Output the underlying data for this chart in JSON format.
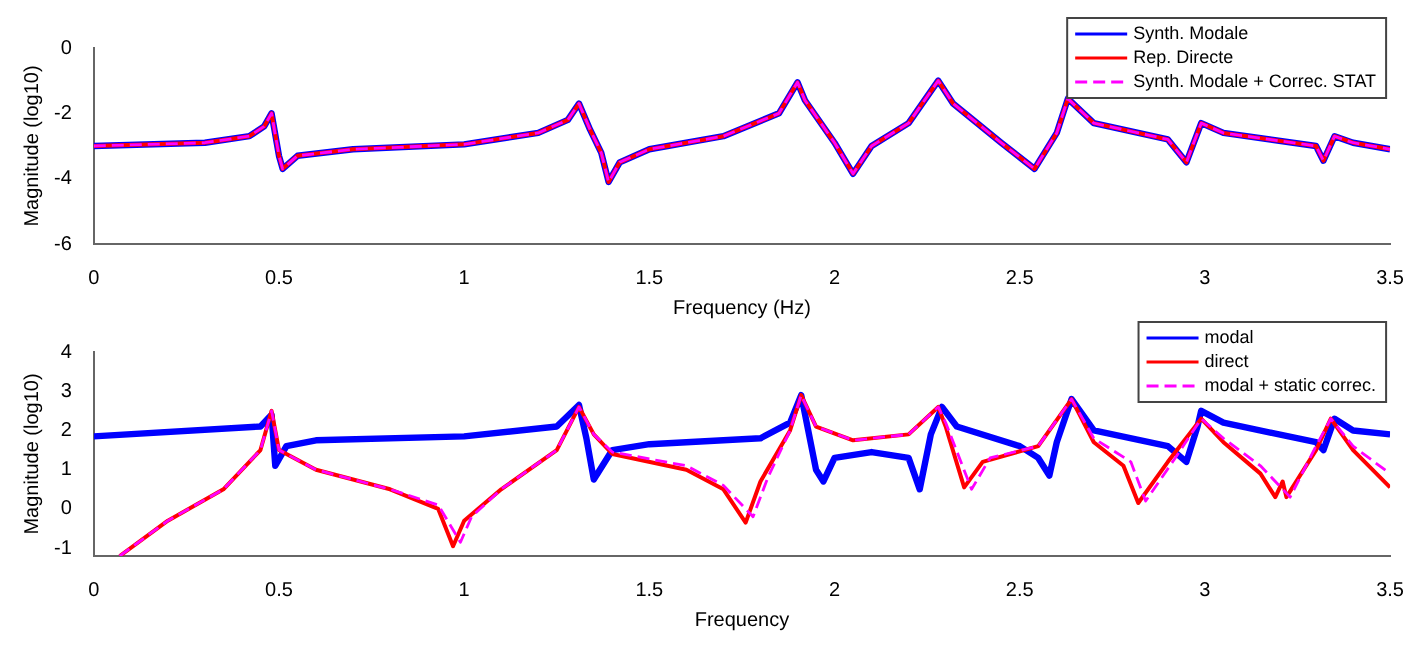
{
  "chart_data": [
    {
      "type": "line",
      "xlabel": "Frequency (Hz)",
      "ylabel": "Magnitude (log10)",
      "xlim": [
        0,
        3.5
      ],
      "xticks": [
        0,
        0.5,
        1,
        1.5,
        2,
        2.5,
        3,
        3.5
      ],
      "ylim": [
        -6,
        0
      ],
      "yticks": [
        -6,
        -4,
        -2,
        0
      ],
      "grid": false,
      "legend": "top right",
      "marker": "none",
      "x": [
        0,
        0.3,
        0.42,
        0.46,
        0.48,
        0.5,
        0.51,
        0.55,
        0.7,
        1.0,
        1.2,
        1.28,
        1.31,
        1.34,
        1.37,
        1.39,
        1.42,
        1.5,
        1.7,
        1.85,
        1.9,
        1.92,
        2.0,
        2.05,
        2.1,
        2.2,
        2.28,
        2.32,
        2.45,
        2.54,
        2.6,
        2.63,
        2.7,
        2.9,
        2.95,
        2.99,
        3.05,
        3.3,
        3.32,
        3.35,
        3.4,
        3.5
      ],
      "series": [
        {
          "name": "Synth. Modale",
          "color": "#0000ff",
          "line_style": "solid",
          "values": [
            -3,
            -2.9,
            -2.7,
            -2.4,
            -2.0,
            -3.3,
            -3.7,
            -3.3,
            -3.1,
            -2.95,
            -2.6,
            -2.2,
            -1.7,
            -2.5,
            -3.2,
            -4.1,
            -3.5,
            -3.1,
            -2.7,
            -2.0,
            -1.05,
            -1.6,
            -2.9,
            -3.85,
            -3.0,
            -2.3,
            -1.0,
            -1.7,
            -2.9,
            -3.7,
            -2.6,
            -1.55,
            -2.3,
            -2.8,
            -3.5,
            -2.3,
            -2.6,
            -3.0,
            -3.45,
            -2.7,
            -2.9,
            -3.1
          ]
        },
        {
          "name": "Rep. Directe",
          "color": "#ff0000",
          "line_style": "solid",
          "values": [
            -3,
            -2.9,
            -2.7,
            -2.4,
            -2.0,
            -3.3,
            -3.7,
            -3.3,
            -3.1,
            -2.95,
            -2.6,
            -2.2,
            -1.7,
            -2.5,
            -3.2,
            -4.1,
            -3.5,
            -3.1,
            -2.7,
            -2.0,
            -1.05,
            -1.6,
            -2.9,
            -3.85,
            -3.0,
            -2.3,
            -1.0,
            -1.7,
            -2.9,
            -3.7,
            -2.6,
            -1.55,
            -2.3,
            -2.8,
            -3.5,
            -2.3,
            -2.6,
            -3.0,
            -3.45,
            -2.7,
            -2.9,
            -3.1
          ]
        },
        {
          "name": "Synth. Modale + Correc. STAT",
          "color": "#ff00ff",
          "line_style": "dashed",
          "values": [
            -3,
            -2.9,
            -2.7,
            -2.4,
            -2.0,
            -3.3,
            -3.7,
            -3.3,
            -3.1,
            -2.95,
            -2.6,
            -2.2,
            -1.7,
            -2.5,
            -3.2,
            -4.1,
            -3.5,
            -3.1,
            -2.7,
            -2.0,
            -1.05,
            -1.6,
            -2.9,
            -3.85,
            -3.0,
            -2.3,
            -1.0,
            -1.7,
            -2.9,
            -3.7,
            -2.6,
            -1.55,
            -2.3,
            -2.8,
            -3.5,
            -2.3,
            -2.6,
            -3.0,
            -3.45,
            -2.7,
            -2.9,
            -3.1
          ]
        }
      ]
    },
    {
      "type": "line",
      "xlabel": "Frequency",
      "ylabel": "Magnitude (log10)",
      "xlim": [
        0,
        3.5
      ],
      "xticks": [
        0,
        0.5,
        1,
        1.5,
        2,
        2.5,
        3,
        3.5
      ],
      "ylim": [
        -1.2,
        4
      ],
      "yticks": [
        -1,
        0,
        1,
        2,
        3,
        4
      ],
      "grid": false,
      "legend": "top right",
      "marker": "none",
      "series": [
        {
          "name": "modal",
          "color": "#0000ff",
          "line_style": "solid",
          "x": [
            0,
            0.45,
            0.48,
            0.49,
            0.52,
            0.6,
            1.0,
            1.25,
            1.31,
            1.33,
            1.35,
            1.4,
            1.5,
            1.8,
            1.88,
            1.91,
            1.95,
            1.97,
            2.0,
            2.1,
            2.2,
            2.23,
            2.26,
            2.29,
            2.33,
            2.5,
            2.55,
            2.58,
            2.6,
            2.64,
            2.7,
            2.9,
            2.95,
            2.98,
            2.99,
            3.05,
            3.3,
            3.32,
            3.35,
            3.4,
            3.5
          ],
          "values": [
            1.85,
            2.1,
            2.4,
            1.1,
            1.6,
            1.75,
            1.85,
            2.1,
            2.65,
            1.8,
            0.75,
            1.5,
            1.65,
            1.8,
            2.2,
            2.9,
            1.0,
            0.7,
            1.3,
            1.45,
            1.3,
            0.5,
            1.9,
            2.6,
            2.1,
            1.6,
            1.3,
            0.85,
            1.7,
            2.8,
            2.0,
            1.6,
            1.2,
            2.1,
            2.5,
            2.2,
            1.7,
            1.5,
            2.3,
            2.0,
            1.9
          ]
        },
        {
          "name": "direct",
          "color": "#ff0000",
          "line_style": "solid",
          "x": [
            0.07,
            0.2,
            0.35,
            0.45,
            0.48,
            0.5,
            0.6,
            0.8,
            0.93,
            0.97,
            1.0,
            1.1,
            1.25,
            1.31,
            1.35,
            1.4,
            1.6,
            1.7,
            1.76,
            1.8,
            1.88,
            1.91,
            1.95,
            2.05,
            2.2,
            2.28,
            2.3,
            2.35,
            2.4,
            2.55,
            2.64,
            2.7,
            2.78,
            2.82,
            2.9,
            2.99,
            3.05,
            3.15,
            3.19,
            3.21,
            3.22,
            3.3,
            3.34,
            3.4,
            3.5
          ],
          "values": [
            -1.2,
            -0.3,
            0.5,
            1.5,
            2.5,
            1.5,
            1.0,
            0.5,
            0,
            -0.95,
            -0.3,
            0.5,
            1.5,
            2.6,
            1.9,
            1.4,
            1.0,
            0.5,
            -0.35,
            0.7,
            2.0,
            2.9,
            2.1,
            1.75,
            1.9,
            2.6,
            2.1,
            0.55,
            1.2,
            1.6,
            2.8,
            1.7,
            1.1,
            0.15,
            1.2,
            2.3,
            1.7,
            0.9,
            0.3,
            0.7,
            0.3,
            1.5,
            2.3,
            1.5,
            0.55
          ]
        },
        {
          "name": "modal + static correc.",
          "color": "#ff00ff",
          "line_style": "dashed",
          "x": [
            0.07,
            0.2,
            0.35,
            0.45,
            0.48,
            0.5,
            0.6,
            0.8,
            0.93,
            0.99,
            1.02,
            1.1,
            1.25,
            1.31,
            1.35,
            1.4,
            1.6,
            1.7,
            1.78,
            1.82,
            1.88,
            1.91,
            1.95,
            2.05,
            2.2,
            2.28,
            2.3,
            2.37,
            2.42,
            2.55,
            2.64,
            2.7,
            2.8,
            2.84,
            2.92,
            2.99,
            3.05,
            3.15,
            3.23,
            3.3,
            3.34,
            3.4,
            3.5
          ],
          "values": [
            -1.2,
            -0.3,
            0.5,
            1.5,
            2.5,
            1.5,
            1.0,
            0.5,
            0.1,
            -0.85,
            -0.2,
            0.5,
            1.5,
            2.6,
            1.9,
            1.45,
            1.1,
            0.6,
            -0.2,
            0.8,
            2.0,
            2.9,
            2.1,
            1.75,
            1.9,
            2.6,
            2.2,
            0.5,
            1.3,
            1.6,
            2.8,
            1.8,
            1.2,
            0.2,
            1.3,
            2.3,
            1.8,
            1.1,
            0.3,
            1.6,
            2.3,
            1.6,
            0.9
          ]
        }
      ]
    }
  ]
}
